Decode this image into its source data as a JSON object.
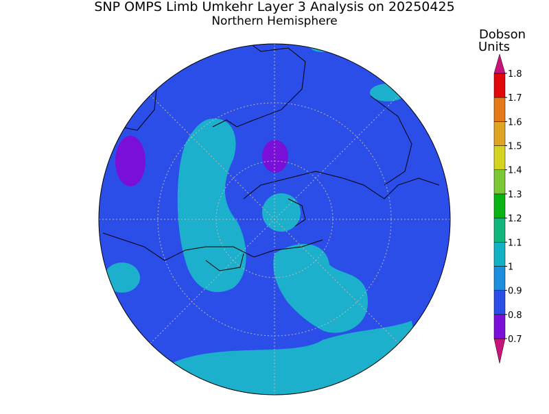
{
  "title": "SNP OMPS Limb Umkehr Layer 3 Analysis on 20250425",
  "subtitle": "Northern Hemisphere",
  "colorbar": {
    "label": [
      "Dobson",
      "Units"
    ],
    "ticks": [
      0.7,
      0.8,
      0.9,
      1,
      1.1,
      1.2,
      1.3,
      1.4,
      1.5,
      1.6,
      1.7,
      1.8
    ],
    "colors": [
      "#c8147a",
      "#7a10d8",
      "#2b4ee8",
      "#1c8ee0",
      "#12b2c4",
      "#10b67a",
      "#08b414",
      "#7cc834",
      "#d4d420",
      "#e0a424",
      "#e67818",
      "#e00808",
      "#c8147a"
    ]
  }
}
